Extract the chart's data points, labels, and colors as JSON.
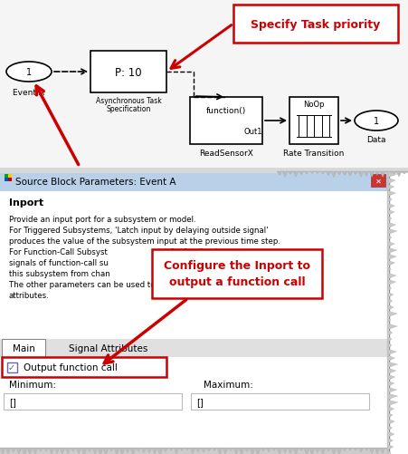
{
  "bg_color": "#ffffff",
  "arrow_red": "#cc0000",
  "callout_border_red": "#cc0000",
  "callout_text_red": "#cc0000",
  "highlight_box": "#cc0000",
  "checkbox_color": "#5555aa",
  "title_text": "Specify Task priority",
  "callout_text": "Configure the Inport to\noutput a function call",
  "dialog_title": "Source Block Parameters: Event A",
  "section_title": "Inport",
  "body_lines": [
    "Provide an input port for a subsystem or model.",
    "For Triggered Subsystems, 'Latch input by delaying outside signal'",
    "produces the value of the subsystem input at the previous time step.",
    "For Function-Call Subsyst                     ut for feedback",
    "signals of function-call su                   nput value to",
    "this subsystem from chan",
    "The other parameters can be used to explicitly specify the input signal",
    "attributes."
  ],
  "tab1": "Main",
  "tab2": "Signal Attributes",
  "checkbox_label": "Output function call",
  "min_label": "Minimum:",
  "max_label": "Maximum:",
  "min_val": "[]",
  "max_val": "[]"
}
